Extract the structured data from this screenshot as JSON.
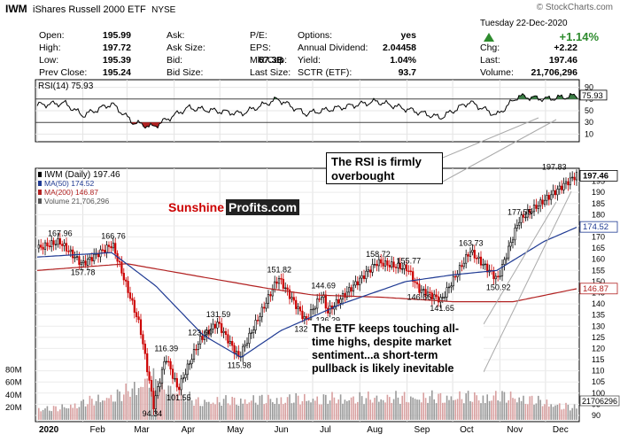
{
  "header": {
    "symbol": "IWM",
    "name": "iShares Russell 2000 ETF",
    "exchange": "NYSE",
    "source": "© StockCharts.com",
    "date": "Tuesday  22-Dec-2020",
    "change_pct": "+1.14%",
    "change_direction": "up",
    "quote_rows": [
      [
        [
          "Open:",
          "195.99"
        ],
        [
          "Ask:",
          ""
        ],
        [
          "P/E:",
          ""
        ],
        [
          "Options:",
          "yes"
        ],
        [
          "",
          ""
        ]
      ],
      [
        [
          "High:",
          "197.72"
        ],
        [
          "Ask Size:",
          ""
        ],
        [
          "EPS:",
          ""
        ],
        [
          "Annual Dividend:",
          "2.04458"
        ],
        [
          "Chg:",
          "+2.22"
        ]
      ],
      [
        [
          "Low:",
          "195.39"
        ],
        [
          "Bid:",
          ""
        ],
        [
          "Mkt Cap:",
          "57.3B"
        ],
        [
          "Yield:",
          "1.04%"
        ],
        [
          "Last:",
          "197.46"
        ]
      ],
      [
        [
          "Prev Close:",
          "195.24"
        ],
        [
          "Bid Size:",
          ""
        ],
        [
          "Last Size:",
          ""
        ],
        [
          "SCTR (ETF):",
          "93.7"
        ],
        [
          "Volume:",
          "21,706,296"
        ]
      ]
    ]
  },
  "rsi_panel": {
    "legend": "RSI(14) 75.93",
    "last_value_label": "75.93",
    "tick_labels": [
      "90",
      "70",
      "50",
      "30",
      "10"
    ]
  },
  "price_panel": {
    "legend": [
      "IWM (Daily) 197.46",
      "MA(50) 174.52",
      "MA(200) 146.87",
      "Volume 21,706,296"
    ],
    "price_ticks": [
      "195",
      "190",
      "185",
      "180",
      "175",
      "170",
      "165",
      "160",
      "155",
      "150",
      "145",
      "140",
      "135",
      "130",
      "125",
      "120",
      "115",
      "110",
      "105",
      "100",
      "95",
      "90"
    ],
    "last_price_label": "197.46",
    "ma50_label": "174.52",
    "ma200_label": "146.87",
    "volume_label": "21706296",
    "volume_ticks": [
      "80M",
      "60M",
      "40M",
      "20M"
    ],
    "month_labels": [
      "2020",
      "Feb",
      "Mar",
      "Apr",
      "May",
      "Jun",
      "Jul",
      "Aug",
      "Sep",
      "Oct",
      "Nov",
      "Dec"
    ],
    "price_annotations": [
      "167.96",
      "166.76",
      "157.78",
      "116.39",
      "123.60",
      "94.34",
      "101.55",
      "131.59",
      "115.98",
      "151.82",
      "132.36",
      "144.69",
      "136.29",
      "158.72",
      "155.77",
      "146.66",
      "141.65",
      "163.73",
      "150.92",
      "177.55",
      "197.83"
    ]
  },
  "brand": {
    "part1": "Sunshine",
    "part2": "Profits.com",
    "color1": "#cc0000"
  },
  "callouts": {
    "rsi": "The RSI is firmly overbought",
    "price": "The ETF keeps touching all-time highs, despite market sentiment...a short-term pullback is likely inevitable"
  },
  "colors": {
    "up_candle": "#000000",
    "down_candle": "#cc0000",
    "ma50": "#1f3a93",
    "ma200": "#b22222",
    "rsi_line": "#000000",
    "rsi_fill_overbought": "#3a7d44",
    "rsi_fill_oversold": "#b22222",
    "up_arrow": "#2e8b2e",
    "volume_up": "#9a9a9a",
    "volume_down": "#d8a0a0"
  },
  "chart_data": {
    "type": "candlestick",
    "title": "IWM iShares Russell 2000 ETF",
    "x_range": [
      "2020-01-02",
      "2020-12-22"
    ],
    "price_range": [
      88,
      200
    ],
    "rsi_range": [
      0,
      100
    ],
    "grid": true,
    "price_key_points": [
      [
        "2020-01-02",
        165.0
      ],
      [
        "2020-01-16",
        167.96
      ],
      [
        "2020-01-31",
        157.78
      ],
      [
        "2020-02-20",
        166.76
      ],
      [
        "2020-03-09",
        130.0
      ],
      [
        "2020-03-18",
        94.34
      ],
      [
        "2020-03-26",
        116.39
      ],
      [
        "2020-04-03",
        101.55
      ],
      [
        "2020-04-17",
        123.6
      ],
      [
        "2020-04-29",
        131.59
      ],
      [
        "2020-05-13",
        115.98
      ],
      [
        "2020-06-08",
        151.82
      ],
      [
        "2020-06-26",
        132.36
      ],
      [
        "2020-07-07",
        144.69
      ],
      [
        "2020-07-10",
        136.29
      ],
      [
        "2020-08-12",
        158.72
      ],
      [
        "2020-09-01",
        155.77
      ],
      [
        "2020-09-08",
        146.66
      ],
      [
        "2020-09-23",
        141.65
      ],
      [
        "2020-10-12",
        163.73
      ],
      [
        "2020-10-30",
        150.92
      ],
      [
        "2020-11-13",
        177.55
      ],
      [
        "2020-12-21",
        197.83
      ],
      [
        "2020-12-22",
        197.46
      ]
    ],
    "ma50_key_points": [
      [
        "2020-01-02",
        161
      ],
      [
        "2020-02-20",
        163
      ],
      [
        "2020-03-20",
        148
      ],
      [
        "2020-04-20",
        126
      ],
      [
        "2020-05-15",
        116
      ],
      [
        "2020-06-10",
        128
      ],
      [
        "2020-07-20",
        140
      ],
      [
        "2020-08-31",
        150
      ],
      [
        "2020-10-01",
        153
      ],
      [
        "2020-10-30",
        155
      ],
      [
        "2020-11-30",
        168
      ],
      [
        "2020-12-22",
        174.52
      ]
    ],
    "ma200_key_points": [
      [
        "2020-01-02",
        155
      ],
      [
        "2020-03-01",
        158
      ],
      [
        "2020-04-20",
        152
      ],
      [
        "2020-06-01",
        147
      ],
      [
        "2020-07-01",
        144
      ],
      [
        "2020-08-15",
        143
      ],
      [
        "2020-10-01",
        141
      ],
      [
        "2020-11-10",
        141
      ],
      [
        "2020-12-22",
        146.87
      ]
    ],
    "rsi_key_points": [
      [
        "2020-01-02",
        60
      ],
      [
        "2020-01-20",
        63
      ],
      [
        "2020-02-01",
        42
      ],
      [
        "2020-02-20",
        62
      ],
      [
        "2020-03-05",
        30
      ],
      [
        "2020-03-18",
        22
      ],
      [
        "2020-04-10",
        55
      ],
      [
        "2020-05-15",
        45
      ],
      [
        "2020-06-08",
        70
      ],
      [
        "2020-06-26",
        45
      ],
      [
        "2020-08-12",
        66
      ],
      [
        "2020-09-23",
        38
      ],
      [
        "2020-10-12",
        65
      ],
      [
        "2020-10-30",
        42
      ],
      [
        "2020-11-13",
        75
      ],
      [
        "2020-12-01",
        70
      ],
      [
        "2020-12-22",
        75.93
      ]
    ],
    "volume_key_points": [
      [
        "2020-01-15",
        22000000
      ],
      [
        "2020-02-27",
        50000000
      ],
      [
        "2020-03-16",
        80000000
      ],
      [
        "2020-04-15",
        35000000
      ],
      [
        "2020-06-11",
        40000000
      ],
      [
        "2020-11-09",
        45000000
      ],
      [
        "2020-12-22",
        21706296
      ]
    ]
  }
}
